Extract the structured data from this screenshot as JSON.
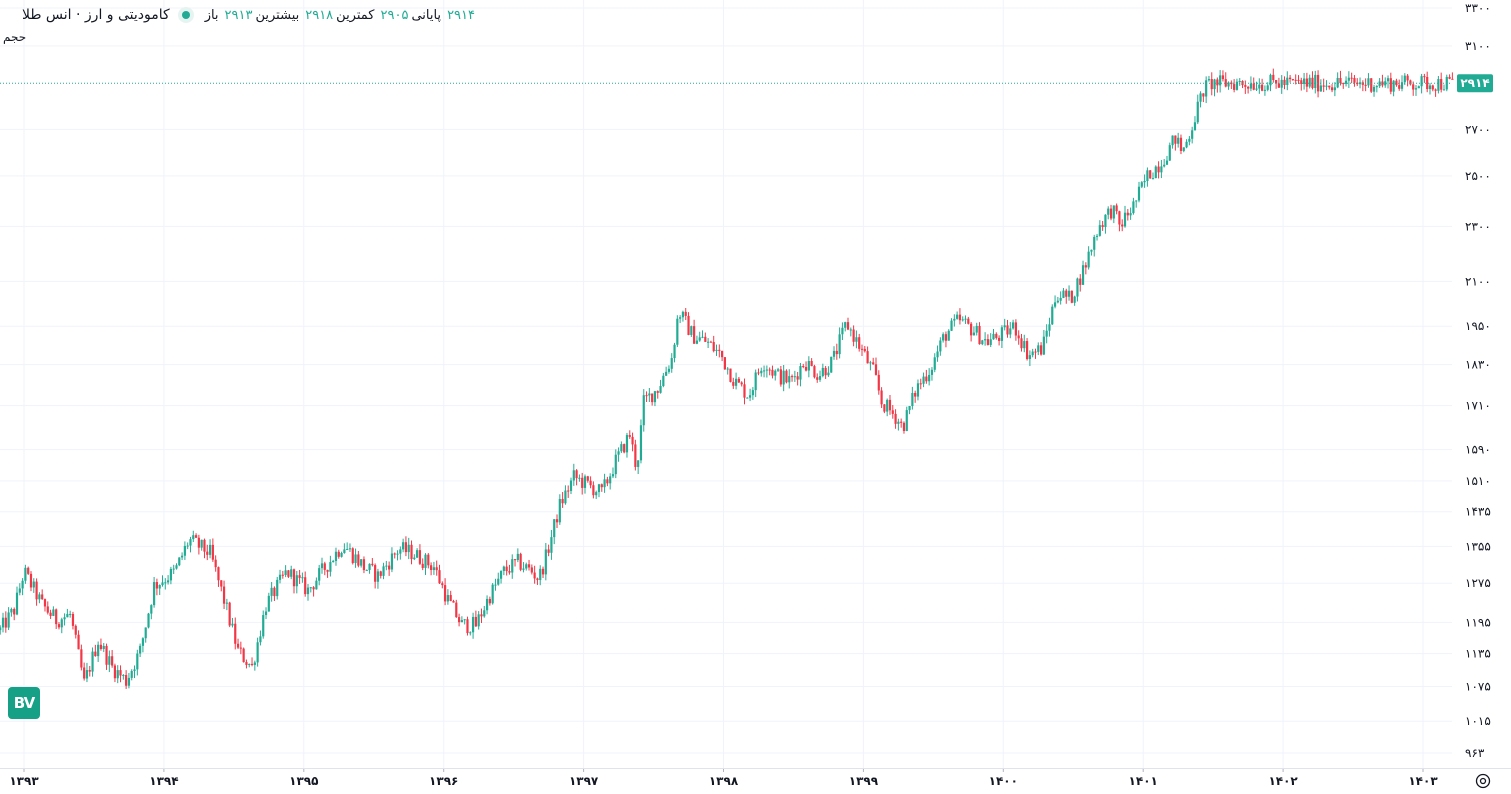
{
  "legend": {
    "title": "کامودیتی و ارز · انس طلا",
    "open_label": "باز",
    "open_value": "۲۹۱۳",
    "high_label": "بیشترین",
    "high_value": "۲۹۱۸",
    "low_label": "کمترین",
    "low_value": "۲۹۰۵",
    "close_label": "پایانی",
    "close_value": "۲۹۱۴"
  },
  "volume_label": "حجم",
  "logo_text": "BV",
  "colors": {
    "up": "#22ab94",
    "down": "#f23645",
    "grid": "#f0f3fa",
    "axis_text": "#131722",
    "price_tag": "#22ab94"
  },
  "chart_data": {
    "type": "candlestick",
    "scale": "log",
    "ylim": [
      940,
      3380
    ],
    "y_ticks": [
      963,
      1015,
      1075,
      1135,
      1195,
      1275,
      1355,
      1435,
      1510,
      1590,
      1710,
      1830,
      1950,
      2100,
      2300,
      2500,
      2700,
      3100,
      3300
    ],
    "y_tick_labels": [
      "۹۶۳",
      "۱۰۱۵",
      "۱۰۷۵",
      "۱۱۳۵",
      "۱۱۹۵",
      "۱۲۷۵",
      "۱۳۵۵",
      "۱۴۳۵",
      "۱۵۱۰",
      "۱۵۹۰",
      "۱۷۱۰",
      "۱۸۳۰",
      "۱۹۵۰",
      "۲۱۰۰",
      "۲۳۰۰",
      "۲۵۰۰",
      "۲۷۰۰",
      "۳۱۰۰",
      "۳۳۰۰"
    ],
    "x_ticks": [
      "۱۳۹۳",
      "۱۳۹۴",
      "۱۳۹۵",
      "۱۳۹۶",
      "۱۳۹۷",
      "۱۳۹۸",
      "۱۳۹۹",
      "۱۴۰۰",
      "۱۴۰۱",
      "۱۴۰۲",
      "۱۴۰۳"
    ],
    "x_tick_positions": [
      0.37,
      1.37,
      2.37,
      3.37,
      4.37,
      5.37,
      6.37,
      7.37,
      8.37,
      9.37,
      10.37
    ],
    "x_range": [
      0.2,
      10.58
    ],
    "last_price": 2914,
    "last_price_label": "۲۹۱۴",
    "grid": true,
    "close_path": [
      [
        0.2,
        1180
      ],
      [
        0.3,
        1220
      ],
      [
        0.37,
        1300
      ],
      [
        0.5,
        1230
      ],
      [
        0.6,
        1200
      ],
      [
        0.7,
        1210
      ],
      [
        0.8,
        1080
      ],
      [
        0.9,
        1160
      ],
      [
        1.0,
        1110
      ],
      [
        1.1,
        1085
      ],
      [
        1.2,
        1140
      ],
      [
        1.3,
        1270
      ],
      [
        1.45,
        1300
      ],
      [
        1.55,
        1370
      ],
      [
        1.7,
        1340
      ],
      [
        1.8,
        1240
      ],
      [
        1.9,
        1140
      ],
      [
        2.0,
        1110
      ],
      [
        2.1,
        1230
      ],
      [
        2.25,
        1300
      ],
      [
        2.4,
        1260
      ],
      [
        2.5,
        1300
      ],
      [
        2.65,
        1360
      ],
      [
        2.8,
        1310
      ],
      [
        2.9,
        1290
      ],
      [
        3.05,
        1350
      ],
      [
        3.15,
        1340
      ],
      [
        3.3,
        1310
      ],
      [
        3.4,
        1240
      ],
      [
        3.5,
        1190
      ],
      [
        3.6,
        1190
      ],
      [
        3.7,
        1250
      ],
      [
        3.8,
        1300
      ],
      [
        3.9,
        1320
      ],
      [
        4.0,
        1300
      ],
      [
        4.05,
        1285
      ],
      [
        4.1,
        1330
      ],
      [
        4.2,
        1450
      ],
      [
        4.3,
        1520
      ],
      [
        4.4,
        1500
      ],
      [
        4.5,
        1480
      ],
      [
        4.6,
        1560
      ],
      [
        4.7,
        1630
      ],
      [
        4.75,
        1540
      ],
      [
        4.8,
        1720
      ],
      [
        4.9,
        1760
      ],
      [
        5.0,
        1850
      ],
      [
        5.05,
        2000
      ],
      [
        5.15,
        1920
      ],
      [
        5.25,
        1900
      ],
      [
        5.35,
        1860
      ],
      [
        5.45,
        1780
      ],
      [
        5.55,
        1740
      ],
      [
        5.65,
        1840
      ],
      [
        5.75,
        1800
      ],
      [
        5.85,
        1780
      ],
      [
        5.95,
        1840
      ],
      [
        6.05,
        1800
      ],
      [
        6.15,
        1840
      ],
      [
        6.25,
        1960
      ],
      [
        6.35,
        1880
      ],
      [
        6.45,
        1800
      ],
      [
        6.5,
        1720
      ],
      [
        6.6,
        1680
      ],
      [
        6.65,
        1650
      ],
      [
        6.75,
        1760
      ],
      [
        6.85,
        1820
      ],
      [
        6.95,
        1920
      ],
      [
        7.05,
        1970
      ],
      [
        7.15,
        1940
      ],
      [
        7.25,
        1900
      ],
      [
        7.35,
        1920
      ],
      [
        7.45,
        1950
      ],
      [
        7.55,
        1860
      ],
      [
        7.65,
        1880
      ],
      [
        7.75,
        2060
      ],
      [
        7.85,
        2040
      ],
      [
        7.95,
        2150
      ],
      [
        8.05,
        2300
      ],
      [
        8.15,
        2370
      ],
      [
        8.2,
        2300
      ],
      [
        8.3,
        2380
      ],
      [
        8.4,
        2500
      ],
      [
        8.5,
        2560
      ],
      [
        8.6,
        2660
      ],
      [
        8.65,
        2600
      ],
      [
        8.7,
        2680
      ],
      [
        8.75,
        2780
      ],
      [
        8.8,
        2880
      ],
      [
        8.85,
        2914
      ]
    ]
  }
}
